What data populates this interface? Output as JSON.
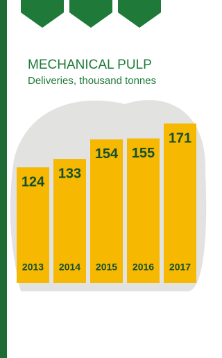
{
  "chart_data": {
    "type": "bar",
    "title": "MECHANICAL PULP",
    "subtitle": "Deliveries, thousand tonnes",
    "categories": [
      "2013",
      "2014",
      "2015",
      "2016",
      "2017"
    ],
    "values": [
      124,
      133,
      154,
      155,
      171
    ],
    "color": "#f6b800"
  }
}
